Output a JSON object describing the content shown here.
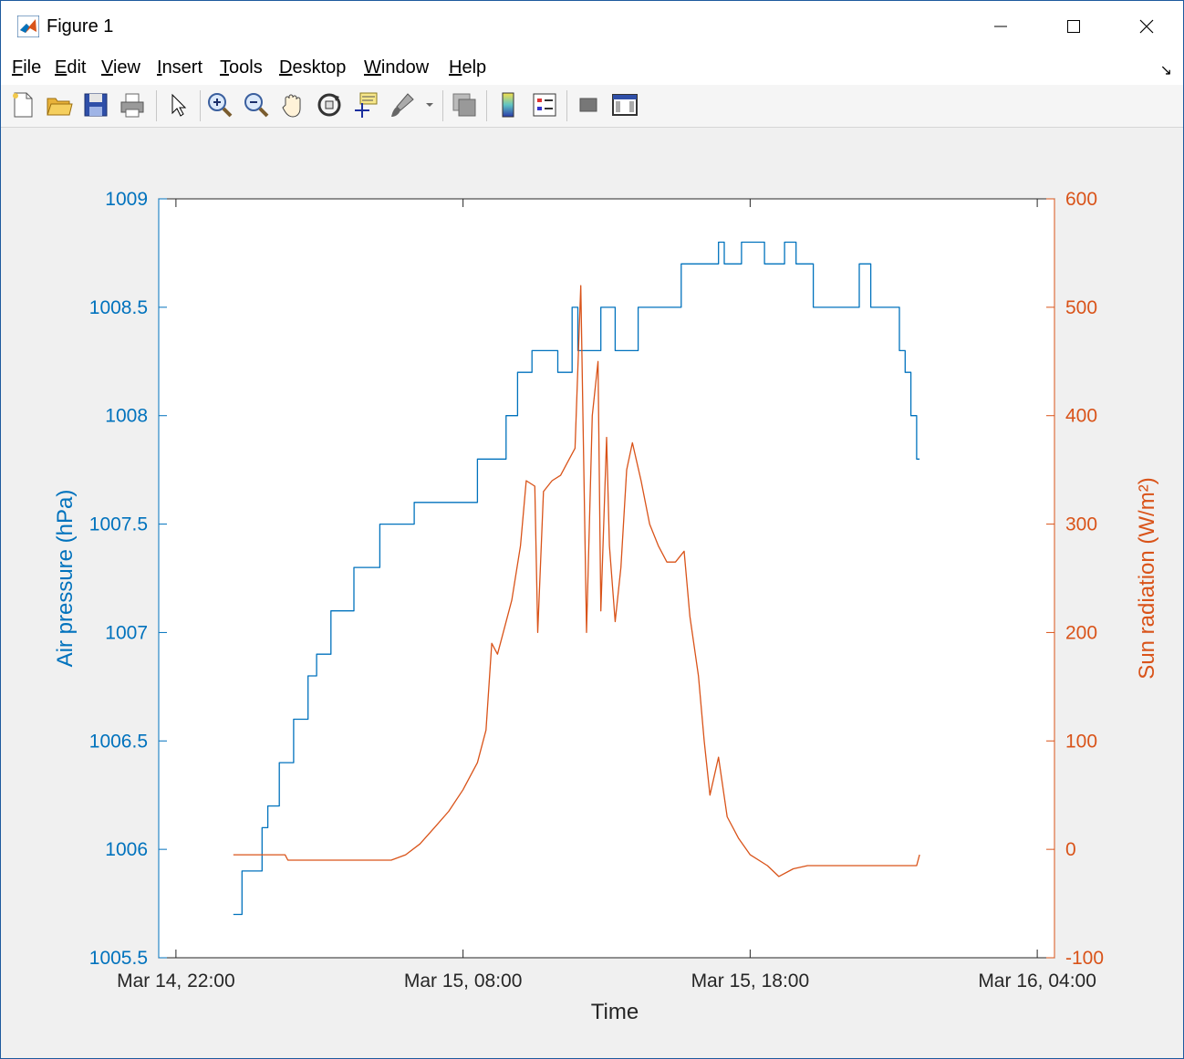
{
  "window": {
    "title": "Figure 1",
    "icon": "matlab-icon"
  },
  "menu": {
    "items": [
      "File",
      "Edit",
      "View",
      "Insert",
      "Tools",
      "Desktop",
      "Window",
      "Help"
    ]
  },
  "toolbar": {
    "buttons": [
      "new-figure-icon",
      "open-file-icon",
      "save-icon",
      "print-icon",
      "edit-plot-arrow-icon",
      "zoom-in-icon",
      "zoom-out-icon",
      "pan-hand-icon",
      "rotate-3d-icon",
      "data-cursor-icon",
      "brush-icon",
      "link-plot-icon",
      "colorbar-icon",
      "legend-icon",
      "hide-plot-tools-icon",
      "show-plot-tools-icon"
    ]
  },
  "colors": {
    "left_axis": "#0072bd",
    "right_axis": "#d95319"
  },
  "chart_data": {
    "type": "line",
    "title": "",
    "xlabel": "Time",
    "x_ticks": [
      "Mar 14, 22:00",
      "Mar 15, 08:00",
      "Mar 15, 18:00",
      "Mar 16, 04:00"
    ],
    "x_tick_hours": [
      0,
      10,
      20,
      30
    ],
    "xlim_hours_from_mar14_2200": [
      -0.6,
      30.6
    ],
    "left_axis": {
      "label": "Air pressure (hPa)",
      "ylim": [
        1005.5,
        1009
      ],
      "ticks": [
        "1005.5",
        "1006",
        "1006.5",
        "1007",
        "1007.5",
        "1008",
        "1008.5",
        "1009"
      ]
    },
    "right_axis": {
      "label": "Sun radiation (W/m²)",
      "ylim": [
        -100,
        600
      ],
      "ticks": [
        "-100",
        "0",
        "100",
        "200",
        "300",
        "400",
        "500",
        "600"
      ]
    },
    "series": [
      {
        "name": "Air pressure (hPa)",
        "axis": "left",
        "color": "#0072bd",
        "points": [
          [
            2.0,
            1005.7
          ],
          [
            2.3,
            1005.7
          ],
          [
            2.3,
            1005.9
          ],
          [
            3.0,
            1005.9
          ],
          [
            3.0,
            1006.1
          ],
          [
            3.2,
            1006.1
          ],
          [
            3.2,
            1006.2
          ],
          [
            3.6,
            1006.2
          ],
          [
            3.6,
            1006.4
          ],
          [
            4.1,
            1006.4
          ],
          [
            4.1,
            1006.6
          ],
          [
            4.6,
            1006.6
          ],
          [
            4.6,
            1006.8
          ],
          [
            4.9,
            1006.8
          ],
          [
            4.9,
            1006.9
          ],
          [
            5.4,
            1006.9
          ],
          [
            5.4,
            1007.1
          ],
          [
            6.2,
            1007.1
          ],
          [
            6.2,
            1007.3
          ],
          [
            7.1,
            1007.3
          ],
          [
            7.1,
            1007.5
          ],
          [
            8.3,
            1007.5
          ],
          [
            8.3,
            1007.6
          ],
          [
            10.5,
            1007.6
          ],
          [
            10.5,
            1007.8
          ],
          [
            11.5,
            1007.8
          ],
          [
            11.5,
            1008.0
          ],
          [
            11.9,
            1008.0
          ],
          [
            11.9,
            1008.2
          ],
          [
            12.4,
            1008.2
          ],
          [
            12.4,
            1008.3
          ],
          [
            13.3,
            1008.3
          ],
          [
            13.3,
            1008.2
          ],
          [
            13.8,
            1008.2
          ],
          [
            13.8,
            1008.5
          ],
          [
            14.0,
            1008.5
          ],
          [
            14.0,
            1008.3
          ],
          [
            14.8,
            1008.3
          ],
          [
            14.8,
            1008.5
          ],
          [
            15.3,
            1008.5
          ],
          [
            15.3,
            1008.3
          ],
          [
            16.1,
            1008.3
          ],
          [
            16.1,
            1008.5
          ],
          [
            17.6,
            1008.5
          ],
          [
            17.6,
            1008.7
          ],
          [
            18.9,
            1008.7
          ],
          [
            18.9,
            1008.8
          ],
          [
            19.1,
            1008.8
          ],
          [
            19.1,
            1008.7
          ],
          [
            19.7,
            1008.7
          ],
          [
            19.7,
            1008.8
          ],
          [
            20.5,
            1008.8
          ],
          [
            20.5,
            1008.7
          ],
          [
            21.2,
            1008.7
          ],
          [
            21.2,
            1008.8
          ],
          [
            21.6,
            1008.8
          ],
          [
            21.6,
            1008.7
          ],
          [
            22.2,
            1008.7
          ],
          [
            22.2,
            1008.5
          ],
          [
            23.8,
            1008.5
          ],
          [
            23.8,
            1008.7
          ],
          [
            24.2,
            1008.7
          ],
          [
            24.2,
            1008.5
          ],
          [
            25.2,
            1008.5
          ],
          [
            25.2,
            1008.3
          ],
          [
            25.4,
            1008.3
          ],
          [
            25.4,
            1008.2
          ],
          [
            25.6,
            1008.2
          ],
          [
            25.6,
            1008.0
          ],
          [
            25.8,
            1008.0
          ],
          [
            25.8,
            1007.8
          ],
          [
            25.9,
            1007.8
          ]
        ]
      },
      {
        "name": "Sun radiation (W/m²)",
        "axis": "right",
        "color": "#d95319",
        "points": [
          [
            2.0,
            -5
          ],
          [
            3.8,
            -5
          ],
          [
            3.9,
            -10
          ],
          [
            7.5,
            -10
          ],
          [
            8.0,
            -5
          ],
          [
            8.5,
            5
          ],
          [
            9.0,
            20
          ],
          [
            9.5,
            35
          ],
          [
            10.0,
            55
          ],
          [
            10.5,
            80
          ],
          [
            10.8,
            110
          ],
          [
            11.0,
            190
          ],
          [
            11.2,
            180
          ],
          [
            11.4,
            200
          ],
          [
            11.7,
            230
          ],
          [
            12.0,
            280
          ],
          [
            12.2,
            340
          ],
          [
            12.5,
            335
          ],
          [
            12.6,
            200
          ],
          [
            12.8,
            330
          ],
          [
            13.1,
            340
          ],
          [
            13.4,
            345
          ],
          [
            13.6,
            355
          ],
          [
            13.9,
            370
          ],
          [
            14.1,
            520
          ],
          [
            14.3,
            200
          ],
          [
            14.5,
            400
          ],
          [
            14.7,
            450
          ],
          [
            14.8,
            220
          ],
          [
            15.0,
            380
          ],
          [
            15.1,
            280
          ],
          [
            15.3,
            210
          ],
          [
            15.5,
            260
          ],
          [
            15.7,
            350
          ],
          [
            15.9,
            375
          ],
          [
            16.2,
            340
          ],
          [
            16.5,
            300
          ],
          [
            16.8,
            280
          ],
          [
            17.1,
            265
          ],
          [
            17.4,
            265
          ],
          [
            17.7,
            275
          ],
          [
            17.9,
            215
          ],
          [
            18.2,
            160
          ],
          [
            18.4,
            100
          ],
          [
            18.6,
            50
          ],
          [
            18.9,
            85
          ],
          [
            19.2,
            30
          ],
          [
            19.6,
            10
          ],
          [
            20.0,
            -5
          ],
          [
            20.6,
            -15
          ],
          [
            21.0,
            -25
          ],
          [
            21.5,
            -18
          ],
          [
            22.0,
            -15
          ],
          [
            23.0,
            -15
          ],
          [
            24.0,
            -15
          ],
          [
            25.0,
            -15
          ],
          [
            25.8,
            -15
          ],
          [
            25.9,
            -5
          ]
        ]
      }
    ],
    "grid": false,
    "legend": "none"
  }
}
